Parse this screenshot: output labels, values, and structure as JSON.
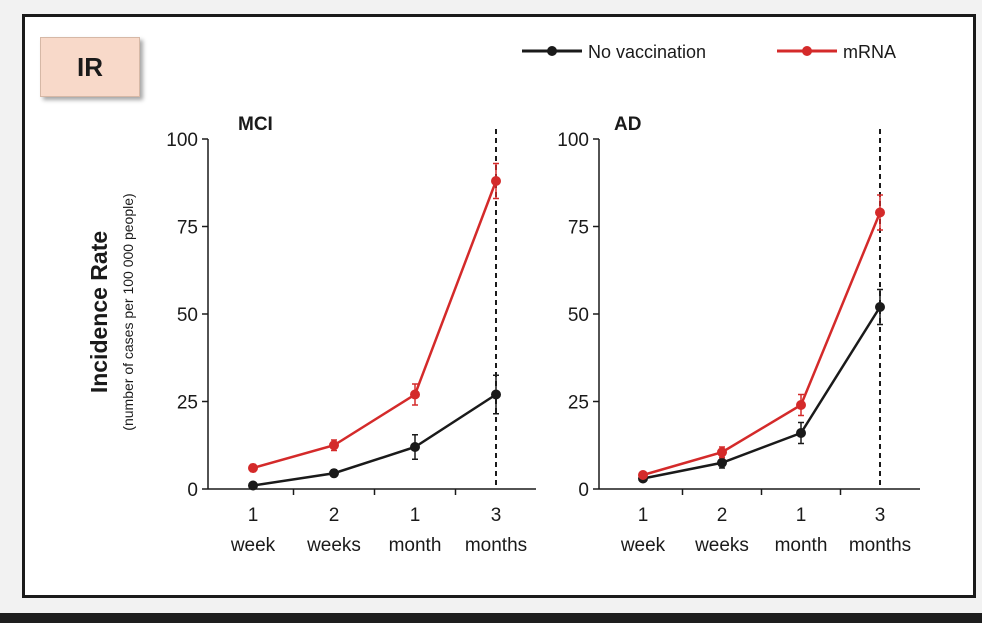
{
  "badge": {
    "label": "IR"
  },
  "legend": {
    "items": [
      {
        "label": "No vaccination",
        "color": "#1a1a1a"
      },
      {
        "label": "mRNA",
        "color": "#d42a2a"
      }
    ]
  },
  "y_axis": {
    "label": "Incidence Rate",
    "sublabel": "(number of cases per 100 000 people)"
  },
  "chart_data": [
    {
      "type": "line",
      "title": "MCI",
      "categories": [
        [
          "1",
          "week"
        ],
        [
          "2",
          "weeks"
        ],
        [
          "1",
          "month"
        ],
        [
          "3",
          "months"
        ]
      ],
      "ylim": [
        0,
        100
      ],
      "yticks": [
        0,
        25,
        50,
        75,
        100
      ],
      "series": [
        {
          "name": "No vaccination",
          "color": "#1a1a1a",
          "values": [
            1,
            4.5,
            12,
            27
          ],
          "errors": [
            0.5,
            1,
            3.5,
            5.5
          ]
        },
        {
          "name": "mRNA",
          "color": "#d42a2a",
          "values": [
            6,
            12.5,
            27,
            88
          ],
          "errors": [
            1,
            1.5,
            3,
            5
          ]
        }
      ],
      "dashed_marker_at": "3 months"
    },
    {
      "type": "line",
      "title": "AD",
      "categories": [
        [
          "1",
          "week"
        ],
        [
          "2",
          "weeks"
        ],
        [
          "1",
          "month"
        ],
        [
          "3",
          "months"
        ]
      ],
      "ylim": [
        0,
        100
      ],
      "yticks": [
        0,
        25,
        50,
        75,
        100
      ],
      "series": [
        {
          "name": "No vaccination",
          "color": "#1a1a1a",
          "values": [
            3,
            7.5,
            16,
            52
          ],
          "errors": [
            0.5,
            1.5,
            3,
            5
          ]
        },
        {
          "name": "mRNA",
          "color": "#d42a2a",
          "values": [
            4,
            10.5,
            24,
            79
          ],
          "errors": [
            0.5,
            1.5,
            3,
            5
          ]
        }
      ],
      "dashed_marker_at": "3 months"
    }
  ]
}
